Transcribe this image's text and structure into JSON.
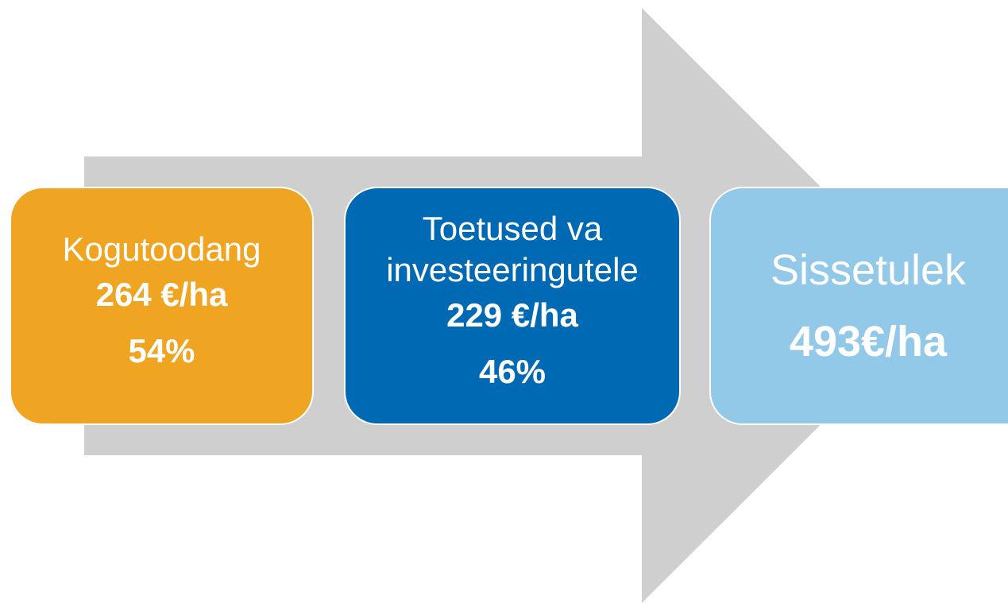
{
  "nodes": [
    {
      "label": "Kogutoodang",
      "amount": "264 €/ha",
      "share": "54%"
    },
    {
      "label": "Toetused va investeeringutele",
      "amount": "229 €/ha",
      "share": "46%"
    },
    {
      "label": "Sissetulek",
      "amount": "493€/ha"
    }
  ]
}
